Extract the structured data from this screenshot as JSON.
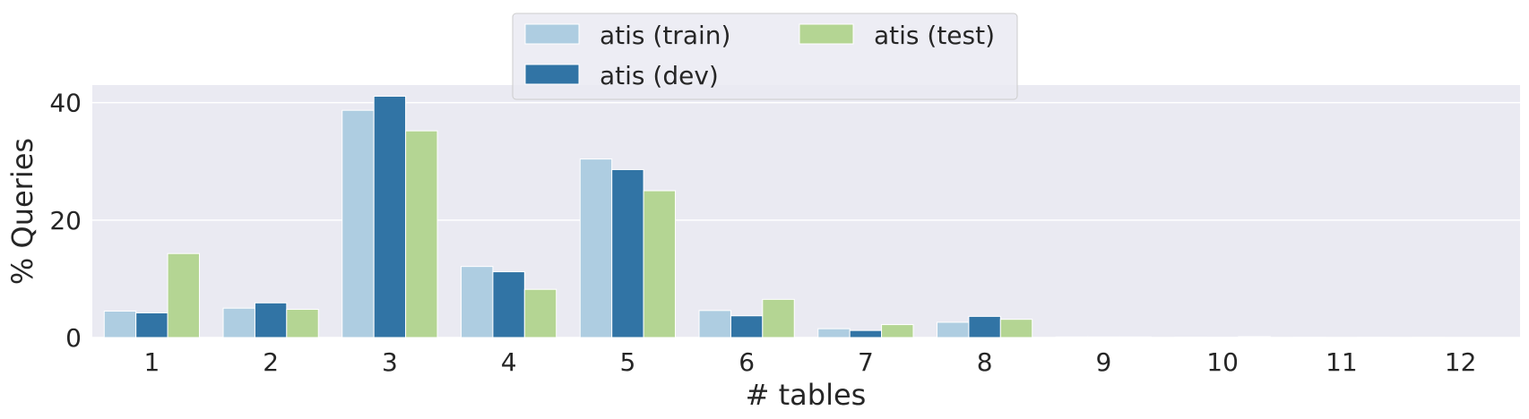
{
  "chart_data": {
    "type": "bar",
    "title": "",
    "xlabel": "# tables",
    "ylabel": "% Queries",
    "categories": [
      "1",
      "2",
      "3",
      "4",
      "5",
      "6",
      "7",
      "8",
      "9",
      "10",
      "11",
      "12"
    ],
    "ylim": [
      0,
      43
    ],
    "yticks": [
      0,
      20,
      40
    ],
    "grid": true,
    "legend_position": "top-center",
    "series": [
      {
        "name": "atis (train)",
        "color": "#aecde1",
        "values": [
          4.5,
          5.0,
          38.7,
          12.1,
          30.4,
          4.6,
          1.5,
          2.6,
          0.1,
          0.05,
          0.03,
          0.02
        ]
      },
      {
        "name": "atis (dev)",
        "color": "#3174a5",
        "values": [
          4.2,
          5.9,
          41.1,
          11.2,
          28.6,
          3.7,
          1.2,
          3.6,
          0.1,
          0.03,
          0.0,
          0.0
        ]
      },
      {
        "name": "atis (test)",
        "color": "#b4d593",
        "values": [
          14.3,
          4.8,
          35.2,
          8.2,
          25.0,
          6.5,
          2.2,
          3.1,
          0.1,
          0.15,
          0.03,
          0.0
        ]
      }
    ]
  }
}
